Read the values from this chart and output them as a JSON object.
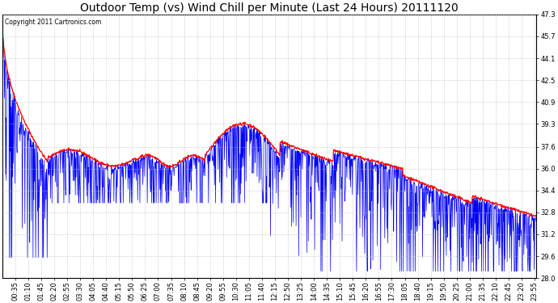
{
  "title": "Outdoor Temp (vs) Wind Chill per Minute (Last 24 Hours) 20111120",
  "copyright_text": "Copyright 2011 Cartronics.com",
  "ylim": [
    28.0,
    47.3
  ],
  "yticks": [
    28.0,
    29.6,
    31.2,
    32.8,
    34.4,
    36.0,
    37.6,
    39.3,
    40.9,
    42.5,
    44.1,
    45.7,
    47.3
  ],
  "background_color": "#ffffff",
  "plot_bg_color": "#ffffff",
  "grid_color": "#bbbbbb",
  "outdoor_temp_color": "#ff0000",
  "wind_chill_color": "#0000ff",
  "title_fontsize": 10,
  "tick_fontsize": 6,
  "copyright_fontsize": 5.5,
  "num_minutes": 1440,
  "x_tick_interval": 35
}
